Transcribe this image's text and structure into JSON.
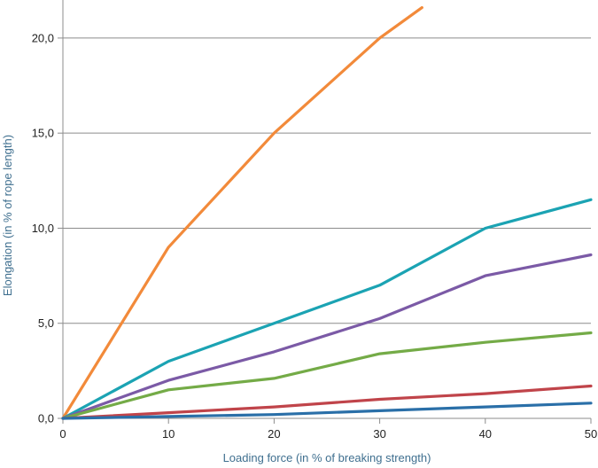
{
  "chart_data": {
    "type": "line",
    "title": "",
    "xlabel": "Loading force (in % of breaking strength)",
    "ylabel": "Elongation (in % of rope length)",
    "xlim": [
      0,
      50
    ],
    "ylim": [
      0,
      22
    ],
    "x_ticks": [
      {
        "value": 0,
        "label": "0"
      },
      {
        "value": 10,
        "label": "10"
      },
      {
        "value": 20,
        "label": "20"
      },
      {
        "value": 30,
        "label": "30"
      },
      {
        "value": 40,
        "label": "40"
      },
      {
        "value": 50,
        "label": "50"
      }
    ],
    "y_ticks": [
      {
        "value": 0,
        "label": "0,0"
      },
      {
        "value": 5,
        "label": "5,0"
      },
      {
        "value": 10,
        "label": "10,0"
      },
      {
        "value": 15,
        "label": "15,0"
      },
      {
        "value": 20,
        "label": "20,0"
      }
    ],
    "grid": "horizontal",
    "legend": "none",
    "series": [
      {
        "color": "#f28a3a",
        "points": [
          [
            0,
            0
          ],
          [
            10,
            9.0
          ],
          [
            20,
            15.0
          ],
          [
            30,
            20.0
          ],
          [
            34,
            21.6
          ]
        ]
      },
      {
        "color": "#1ba3b3",
        "points": [
          [
            0,
            0
          ],
          [
            10,
            3.0
          ],
          [
            20,
            5.0
          ],
          [
            30,
            7.0
          ],
          [
            40,
            10.0
          ],
          [
            50,
            11.5
          ]
        ]
      },
      {
        "color": "#7b5aa6",
        "points": [
          [
            0,
            0
          ],
          [
            10,
            2.0
          ],
          [
            20,
            3.5
          ],
          [
            30,
            5.25
          ],
          [
            40,
            7.5
          ],
          [
            50,
            8.6
          ]
        ]
      },
      {
        "color": "#74ab47",
        "points": [
          [
            0,
            0
          ],
          [
            10,
            1.5
          ],
          [
            20,
            2.1
          ],
          [
            30,
            3.4
          ],
          [
            40,
            4.0
          ],
          [
            50,
            4.5
          ]
        ]
      },
      {
        "color": "#c0444a",
        "points": [
          [
            0,
            0
          ],
          [
            10,
            0.3
          ],
          [
            20,
            0.6
          ],
          [
            30,
            1.0
          ],
          [
            40,
            1.3
          ],
          [
            50,
            1.7
          ]
        ]
      },
      {
        "color": "#2a6fa8",
        "points": [
          [
            0,
            0
          ],
          [
            10,
            0.1
          ],
          [
            20,
            0.2
          ],
          [
            30,
            0.4
          ],
          [
            40,
            0.6
          ],
          [
            50,
            0.8
          ]
        ]
      }
    ]
  }
}
